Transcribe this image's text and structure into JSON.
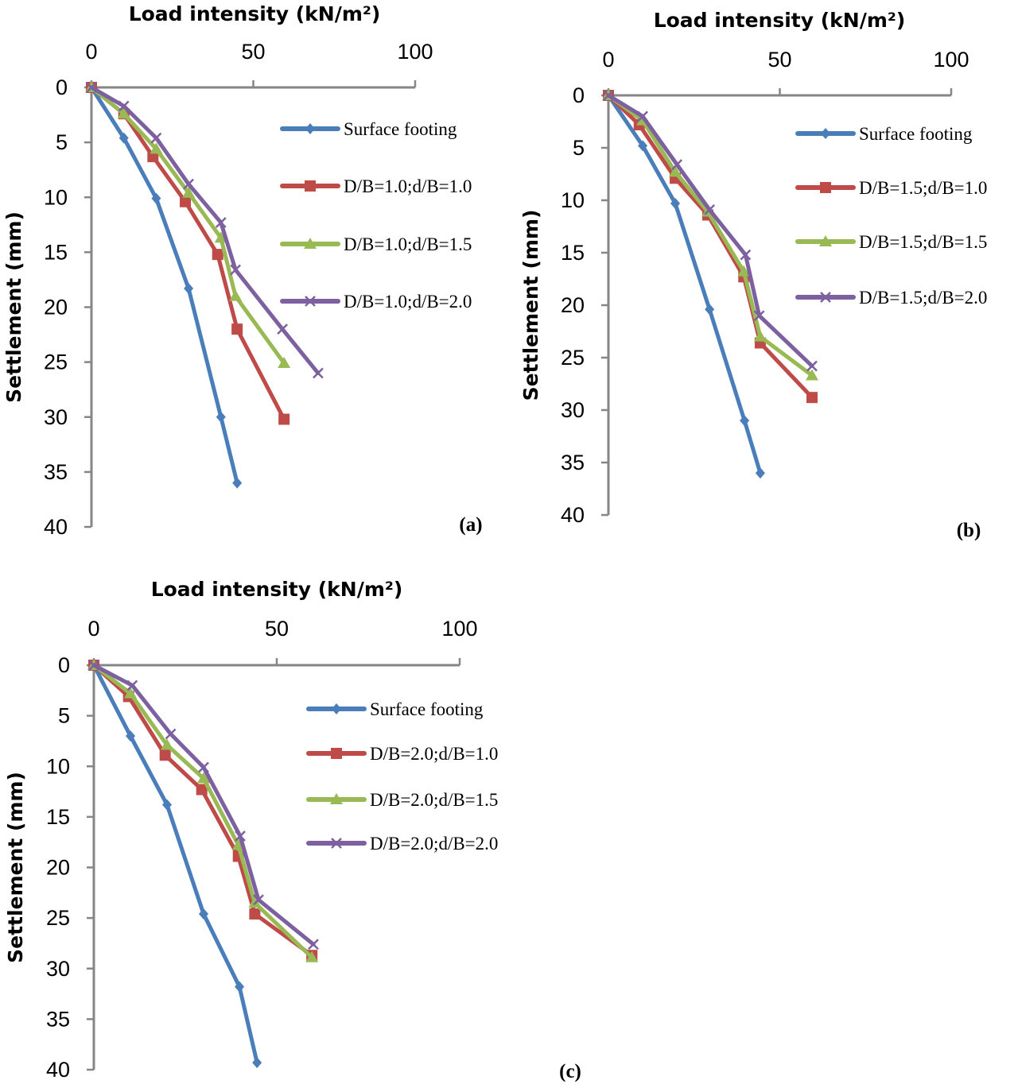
{
  "colors": {
    "surface": "#4a7ebb",
    "dB10": "#be4b48",
    "dB15": "#98b954",
    "dB20": "#7d60a0",
    "axis": "#868686"
  },
  "chart_data": [
    {
      "type": "line",
      "panel_label": "(a)",
      "xlabel": "Load intensity (kN/m²)",
      "ylabel": "Settlement (mm)",
      "xlim": [
        0,
        100
      ],
      "ylim": [
        0,
        40
      ],
      "y_reversed": true,
      "x_axis_position": "top",
      "xticks": [
        0,
        50,
        100
      ],
      "yticks": [
        0,
        5,
        10,
        15,
        20,
        25,
        30,
        35,
        40
      ],
      "grid": false,
      "legend": "right",
      "series": [
        {
          "name": "Surface footing",
          "key": "surface",
          "marker": "diamond",
          "x": [
            0,
            10,
            20,
            30,
            40,
            45
          ],
          "y": [
            0,
            4.6,
            10.1,
            18.3,
            30,
            36
          ]
        },
        {
          "name": "D/B=1.0;d/B=1.0",
          "key": "dB10",
          "marker": "square",
          "x": [
            0,
            10,
            19,
            29,
            39,
            45,
            59.5
          ],
          "y": [
            0,
            2.4,
            6.3,
            10.4,
            15.2,
            22,
            30.2
          ]
        },
        {
          "name": "D/B=1.0;d/B=1.5",
          "key": "dB15",
          "marker": "triangle",
          "x": [
            0,
            10,
            20,
            30,
            40,
            44.5,
            59.5
          ],
          "y": [
            0,
            2.4,
            5.6,
            9.6,
            13.7,
            19,
            25.1
          ]
        },
        {
          "name": "D/B=1.0;d/B=2.0",
          "key": "dB20",
          "marker": "x",
          "x": [
            0,
            10,
            20,
            30,
            40,
            44.5,
            59,
            70
          ],
          "y": [
            0,
            1.7,
            4.6,
            8.8,
            12.3,
            16.6,
            22,
            26
          ]
        }
      ]
    },
    {
      "type": "line",
      "panel_label": "(b)",
      "xlabel": "Load intensity (kN/m²)",
      "ylabel": "Settlement (mm)",
      "xlim": [
        0,
        100
      ],
      "ylim": [
        0,
        40
      ],
      "y_reversed": true,
      "x_axis_position": "top",
      "xticks": [
        0,
        50,
        100
      ],
      "yticks": [
        0,
        5,
        10,
        15,
        20,
        25,
        30,
        35,
        40
      ],
      "grid": false,
      "legend": "right",
      "series": [
        {
          "name": "Surface footing",
          "key": "surface",
          "marker": "diamond",
          "x": [
            0,
            10,
            19.5,
            29.5,
            39.7,
            44.3
          ],
          "y": [
            0,
            4.8,
            10.3,
            20.4,
            31,
            36
          ]
        },
        {
          "name": "D/B=1.5;d/B=1.0",
          "key": "dB10",
          "marker": "square",
          "x": [
            0,
            9,
            19.5,
            29,
            39.5,
            44.3,
            59.4
          ],
          "y": [
            0,
            2.8,
            7.9,
            11.4,
            17.3,
            23.6,
            28.8
          ]
        },
        {
          "name": "D/B=1.5;d/B=1.5",
          "key": "dB15",
          "marker": "triangle",
          "x": [
            0,
            10,
            19.5,
            29,
            39.5,
            44.3,
            59.4
          ],
          "y": [
            0,
            2.4,
            7.3,
            11.1,
            16.8,
            23,
            26.7
          ]
        },
        {
          "name": "D/B=1.5;d/B=2.0",
          "key": "dB20",
          "marker": "x",
          "x": [
            0,
            10,
            20,
            29.5,
            40,
            44,
            59.4
          ],
          "y": [
            0,
            2,
            6.6,
            10.9,
            15.2,
            21,
            25.8
          ]
        }
      ]
    },
    {
      "type": "line",
      "panel_label": "(c)",
      "xlabel": "Load intensity (kN/m²)",
      "ylabel": "Settlement (mm)",
      "xlim": [
        0,
        100
      ],
      "ylim": [
        0,
        40
      ],
      "y_reversed": true,
      "x_axis_position": "top",
      "xticks": [
        0,
        50,
        100
      ],
      "yticks": [
        0,
        5,
        10,
        15,
        20,
        25,
        30,
        35,
        40
      ],
      "grid": false,
      "legend": "right",
      "series": [
        {
          "name": "Surface footing",
          "key": "surface",
          "marker": "diamond",
          "x": [
            0,
            10,
            20,
            30,
            39.8,
            44.6
          ],
          "y": [
            0,
            7,
            13.8,
            24.6,
            31.8,
            39.3
          ]
        },
        {
          "name": "D/B=2.0;d/B=1.0",
          "key": "dB10",
          "marker": "square",
          "x": [
            0,
            9.5,
            19.5,
            29.5,
            39.5,
            44,
            59.6
          ],
          "y": [
            0,
            3.1,
            8.9,
            12.3,
            18.9,
            24.6,
            28.7
          ]
        },
        {
          "name": "D/B=2.0;d/B=1.5",
          "key": "dB15",
          "marker": "triangle",
          "x": [
            0,
            10,
            20,
            30,
            39.5,
            44,
            59.6
          ],
          "y": [
            0,
            2.8,
            7.9,
            11.2,
            17.8,
            23.5,
            28.9
          ]
        },
        {
          "name": "D/B=2.0;d/B=2.0",
          "key": "dB20",
          "marker": "x",
          "x": [
            0,
            10.5,
            21,
            30,
            40,
            45,
            60
          ],
          "y": [
            0,
            2,
            6.8,
            10.1,
            16.9,
            23.2,
            27.6
          ]
        }
      ]
    }
  ]
}
